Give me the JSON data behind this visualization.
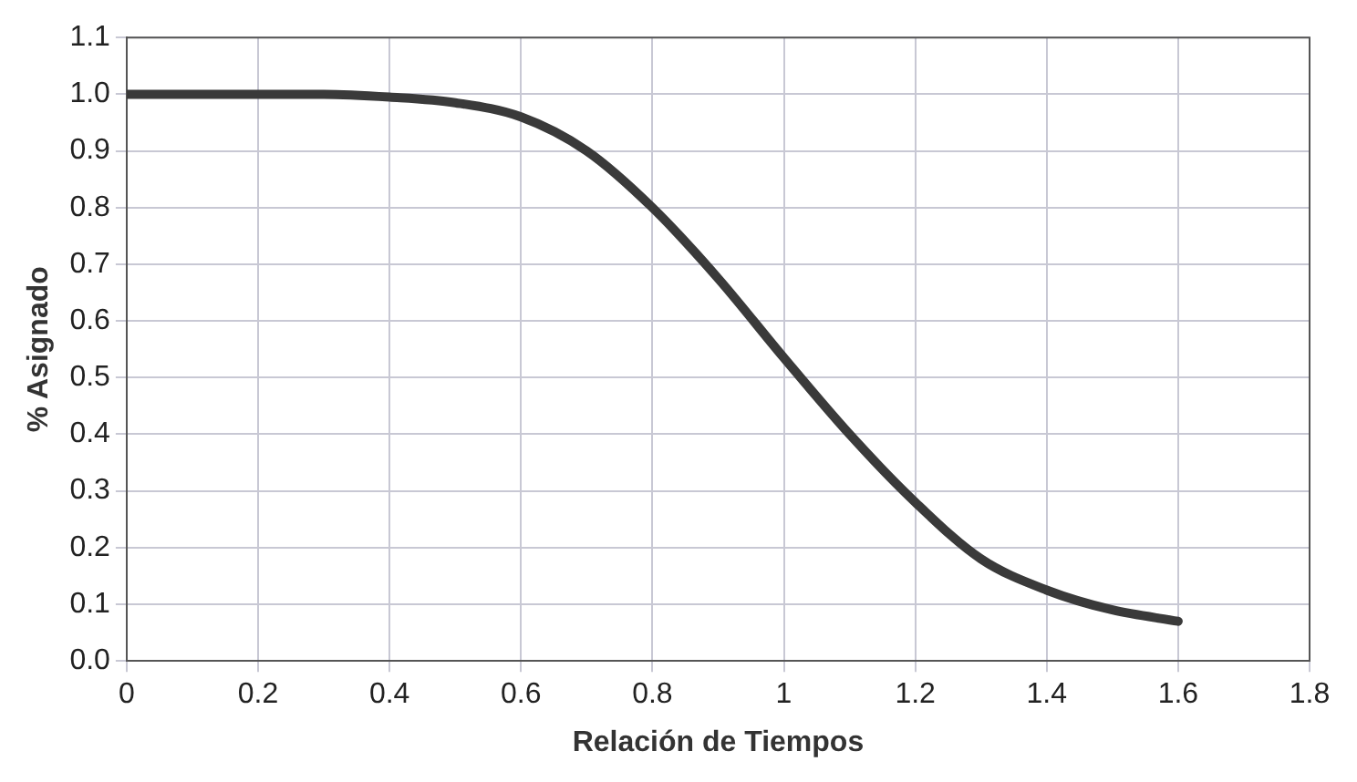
{
  "chart_data": {
    "type": "line",
    "xlabel": "Relación de Tiempos",
    "ylabel": "% Asignado",
    "x": [
      0,
      0.1,
      0.2,
      0.3,
      0.4,
      0.5,
      0.6,
      0.7,
      0.8,
      0.9,
      1.0,
      1.1,
      1.2,
      1.3,
      1.4,
      1.5,
      1.6
    ],
    "series": [
      {
        "color": "#3a3a3a",
        "values": [
          1.0,
          1.0,
          1.0,
          1.0,
          0.995,
          0.985,
          0.96,
          0.9,
          0.8,
          0.675,
          0.535,
          0.4,
          0.28,
          0.18,
          0.125,
          0.09,
          0.07
        ]
      }
    ],
    "xlim": [
      0,
      1.8
    ],
    "xticks": [
      0,
      0.2,
      0.4,
      0.6,
      0.8,
      1,
      1.2,
      1.4,
      1.6,
      1.8
    ],
    "ylim": [
      0,
      1.1
    ],
    "yticks": [
      {
        "value": 0,
        "label": "0.0"
      },
      0.1,
      0.2,
      0.3,
      0.4,
      0.5,
      0.6,
      0.7,
      0.8,
      0.9,
      {
        "value": 1,
        "label": "1.0"
      },
      1.1
    ],
    "grid": true,
    "legend": false,
    "marker": "none",
    "line_style": "solid"
  }
}
